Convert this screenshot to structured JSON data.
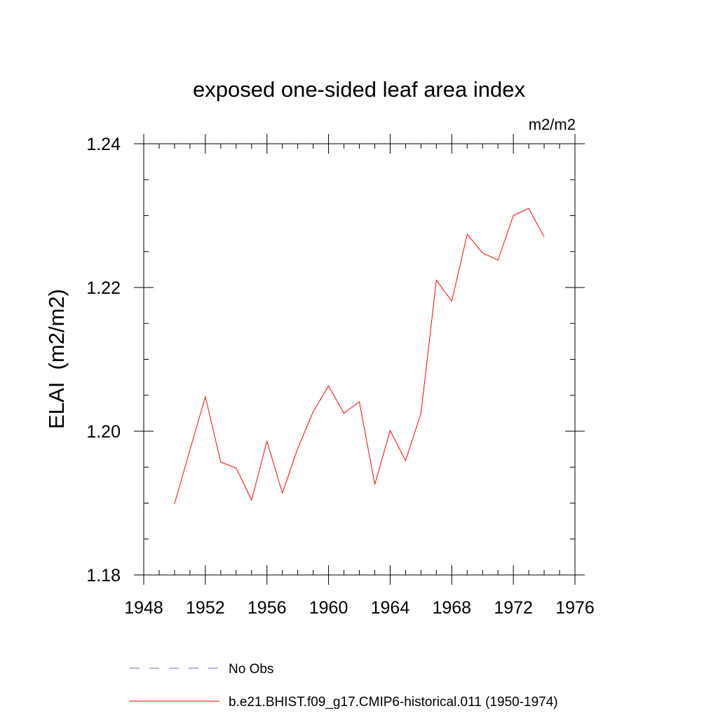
{
  "chart_data": {
    "type": "line",
    "title": "exposed one-sided leaf area index",
    "units_label": "m2/m2",
    "ylabel": "ELAI  (m2/m2)",
    "xlabel": "",
    "xlim": [
      1948,
      1976
    ],
    "ylim": [
      1.18,
      1.24
    ],
    "x_ticks": [
      1948,
      1952,
      1956,
      1960,
      1964,
      1968,
      1972,
      1976
    ],
    "x_tick_labels": [
      "1948",
      "1952",
      "1956",
      "1960",
      "1964",
      "1968",
      "1972",
      "1976"
    ],
    "y_ticks": [
      1.18,
      1.2,
      1.22,
      1.24
    ],
    "y_tick_labels": [
      "1.18",
      "1.20",
      "1.22",
      "1.24"
    ],
    "grid": false,
    "legend_position": "bottom",
    "series": [
      {
        "name": "No Obs",
        "color": "#7070c0",
        "dash": "dashed",
        "x": [],
        "y": []
      },
      {
        "name": "b.e21.BHIST.f09_g17.CMIP6-historical.011 (1950-1974)",
        "color": "#ff0000",
        "dash": "solid",
        "x": [
          1950,
          1951,
          1952,
          1953,
          1954,
          1955,
          1956,
          1957,
          1958,
          1959,
          1960,
          1961,
          1962,
          1963,
          1964,
          1965,
          1966,
          1967,
          1968,
          1969,
          1970,
          1971,
          1972,
          1973,
          1974
        ],
        "y": [
          1.1899,
          1.1974,
          1.2048,
          1.1957,
          1.1949,
          1.1904,
          1.1986,
          1.1914,
          1.1976,
          1.2027,
          1.2063,
          1.2025,
          1.2041,
          1.1926,
          1.2001,
          1.1959,
          1.2025,
          1.221,
          1.2181,
          1.2274,
          1.2248,
          1.2238,
          1.23,
          1.231,
          1.227
        ]
      }
    ]
  }
}
